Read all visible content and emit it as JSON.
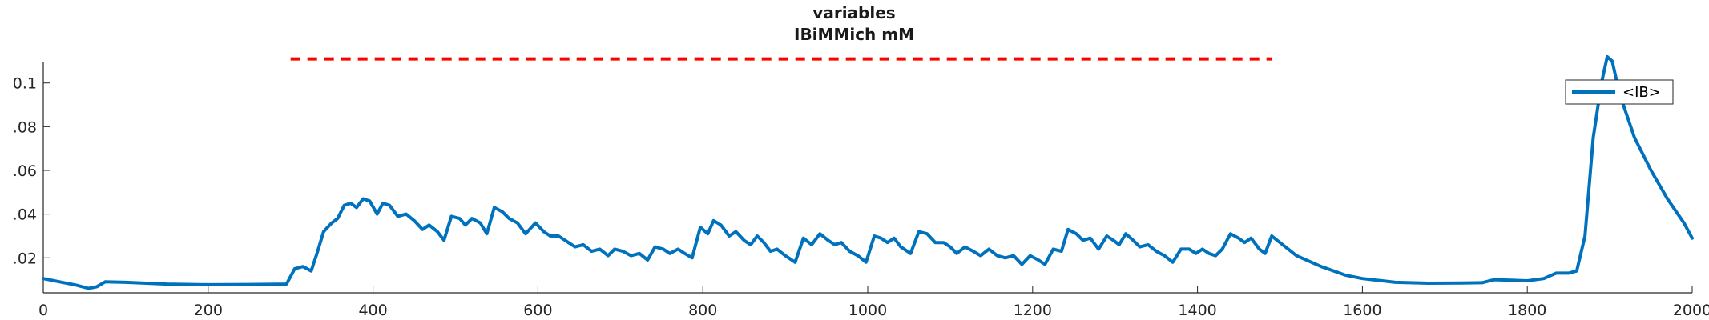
{
  "chart_data": {
    "type": "line",
    "title": "variables",
    "subtitle": "IBiMMich mM",
    "xlabel": "",
    "ylabel": "",
    "xlim": [
      0,
      2000
    ],
    "ylim": [
      0.004,
      0.116
    ],
    "x_ticks": [
      0,
      200,
      400,
      600,
      800,
      1000,
      1200,
      1400,
      1600,
      1800,
      2000
    ],
    "y_ticks": [
      0.02,
      0.04,
      0.06,
      0.08,
      0.1
    ],
    "y_tick_labels": [
      ".02",
      ".04",
      ".06",
      ".08",
      "0.1"
    ],
    "grid": false,
    "legend_position": "top-right",
    "reference_line": {
      "y": 0.111,
      "x_start": 300,
      "x_end": 1490,
      "color": "#ff0000",
      "style": "dashed"
    },
    "series": [
      {
        "name": "<IB>",
        "color": "#0072bd",
        "points": [
          [
            0,
            0.0105
          ],
          [
            20,
            0.009
          ],
          [
            40,
            0.0075
          ],
          [
            55,
            0.006
          ],
          [
            65,
            0.0068
          ],
          [
            75,
            0.009
          ],
          [
            100,
            0.0088
          ],
          [
            150,
            0.008
          ],
          [
            200,
            0.0077
          ],
          [
            250,
            0.0078
          ],
          [
            295,
            0.008
          ],
          [
            305,
            0.015
          ],
          [
            315,
            0.016
          ],
          [
            325,
            0.014
          ],
          [
            332,
            0.022
          ],
          [
            340,
            0.032
          ],
          [
            350,
            0.036
          ],
          [
            357,
            0.038
          ],
          [
            365,
            0.044
          ],
          [
            373,
            0.045
          ],
          [
            380,
            0.043
          ],
          [
            388,
            0.047
          ],
          [
            396,
            0.046
          ],
          [
            405,
            0.04
          ],
          [
            412,
            0.045
          ],
          [
            420,
            0.044
          ],
          [
            430,
            0.039
          ],
          [
            440,
            0.04
          ],
          [
            450,
            0.037
          ],
          [
            460,
            0.033
          ],
          [
            468,
            0.035
          ],
          [
            478,
            0.032
          ],
          [
            486,
            0.028
          ],
          [
            495,
            0.039
          ],
          [
            505,
            0.038
          ],
          [
            512,
            0.035
          ],
          [
            520,
            0.038
          ],
          [
            530,
            0.036
          ],
          [
            538,
            0.031
          ],
          [
            547,
            0.043
          ],
          [
            557,
            0.041
          ],
          [
            565,
            0.038
          ],
          [
            575,
            0.036
          ],
          [
            585,
            0.031
          ],
          [
            597,
            0.036
          ],
          [
            607,
            0.032
          ],
          [
            615,
            0.03
          ],
          [
            625,
            0.03
          ],
          [
            637,
            0.027
          ],
          [
            645,
            0.025
          ],
          [
            655,
            0.026
          ],
          [
            665,
            0.023
          ],
          [
            675,
            0.024
          ],
          [
            685,
            0.021
          ],
          [
            693,
            0.024
          ],
          [
            703,
            0.023
          ],
          [
            713,
            0.021
          ],
          [
            723,
            0.022
          ],
          [
            733,
            0.019
          ],
          [
            742,
            0.025
          ],
          [
            752,
            0.024
          ],
          [
            760,
            0.022
          ],
          [
            770,
            0.024
          ],
          [
            778,
            0.022
          ],
          [
            787,
            0.02
          ],
          [
            797,
            0.034
          ],
          [
            806,
            0.031
          ],
          [
            813,
            0.037
          ],
          [
            822,
            0.035
          ],
          [
            832,
            0.03
          ],
          [
            840,
            0.032
          ],
          [
            850,
            0.028
          ],
          [
            858,
            0.026
          ],
          [
            866,
            0.03
          ],
          [
            874,
            0.027
          ],
          [
            882,
            0.023
          ],
          [
            890,
            0.024
          ],
          [
            900,
            0.021
          ],
          [
            912,
            0.018
          ],
          [
            922,
            0.029
          ],
          [
            932,
            0.026
          ],
          [
            942,
            0.031
          ],
          [
            952,
            0.028
          ],
          [
            960,
            0.026
          ],
          [
            968,
            0.027
          ],
          [
            978,
            0.023
          ],
          [
            988,
            0.021
          ],
          [
            998,
            0.018
          ],
          [
            1008,
            0.03
          ],
          [
            1016,
            0.029
          ],
          [
            1024,
            0.027
          ],
          [
            1032,
            0.029
          ],
          [
            1040,
            0.025
          ],
          [
            1052,
            0.022
          ],
          [
            1062,
            0.032
          ],
          [
            1072,
            0.031
          ],
          [
            1082,
            0.027
          ],
          [
            1092,
            0.027
          ],
          [
            1100,
            0.025
          ],
          [
            1108,
            0.022
          ],
          [
            1118,
            0.025
          ],
          [
            1128,
            0.023
          ],
          [
            1137,
            0.021
          ],
          [
            1147,
            0.024
          ],
          [
            1157,
            0.021
          ],
          [
            1167,
            0.02
          ],
          [
            1177,
            0.021
          ],
          [
            1187,
            0.017
          ],
          [
            1197,
            0.021
          ],
          [
            1207,
            0.019
          ],
          [
            1215,
            0.017
          ],
          [
            1225,
            0.024
          ],
          [
            1235,
            0.023
          ],
          [
            1243,
            0.033
          ],
          [
            1253,
            0.031
          ],
          [
            1261,
            0.028
          ],
          [
            1270,
            0.029
          ],
          [
            1280,
            0.024
          ],
          [
            1290,
            0.03
          ],
          [
            1298,
            0.028
          ],
          [
            1305,
            0.026
          ],
          [
            1313,
            0.031
          ],
          [
            1322,
            0.028
          ],
          [
            1330,
            0.025
          ],
          [
            1340,
            0.026
          ],
          [
            1350,
            0.023
          ],
          [
            1360,
            0.021
          ],
          [
            1370,
            0.018
          ],
          [
            1380,
            0.024
          ],
          [
            1390,
            0.024
          ],
          [
            1398,
            0.022
          ],
          [
            1406,
            0.024
          ],
          [
            1414,
            0.022
          ],
          [
            1422,
            0.021
          ],
          [
            1430,
            0.024
          ],
          [
            1440,
            0.031
          ],
          [
            1450,
            0.029
          ],
          [
            1457,
            0.027
          ],
          [
            1465,
            0.029
          ],
          [
            1475,
            0.024
          ],
          [
            1482,
            0.022
          ],
          [
            1490,
            0.03
          ],
          [
            1500,
            0.027
          ],
          [
            1520,
            0.021
          ],
          [
            1550,
            0.016
          ],
          [
            1580,
            0.012
          ],
          [
            1600,
            0.0105
          ],
          [
            1640,
            0.0088
          ],
          [
            1680,
            0.0084
          ],
          [
            1720,
            0.0085
          ],
          [
            1745,
            0.0086
          ],
          [
            1760,
            0.01
          ],
          [
            1780,
            0.0098
          ],
          [
            1800,
            0.0095
          ],
          [
            1820,
            0.0105
          ],
          [
            1835,
            0.013
          ],
          [
            1850,
            0.013
          ],
          [
            1860,
            0.014
          ],
          [
            1870,
            0.03
          ],
          [
            1880,
            0.075
          ],
          [
            1890,
            0.1
          ],
          [
            1897,
            0.112
          ],
          [
            1903,
            0.11
          ],
          [
            1912,
            0.095
          ],
          [
            1930,
            0.075
          ],
          [
            1950,
            0.06
          ],
          [
            1970,
            0.047
          ],
          [
            1990,
            0.036
          ],
          [
            2000,
            0.029
          ]
        ]
      }
    ]
  }
}
